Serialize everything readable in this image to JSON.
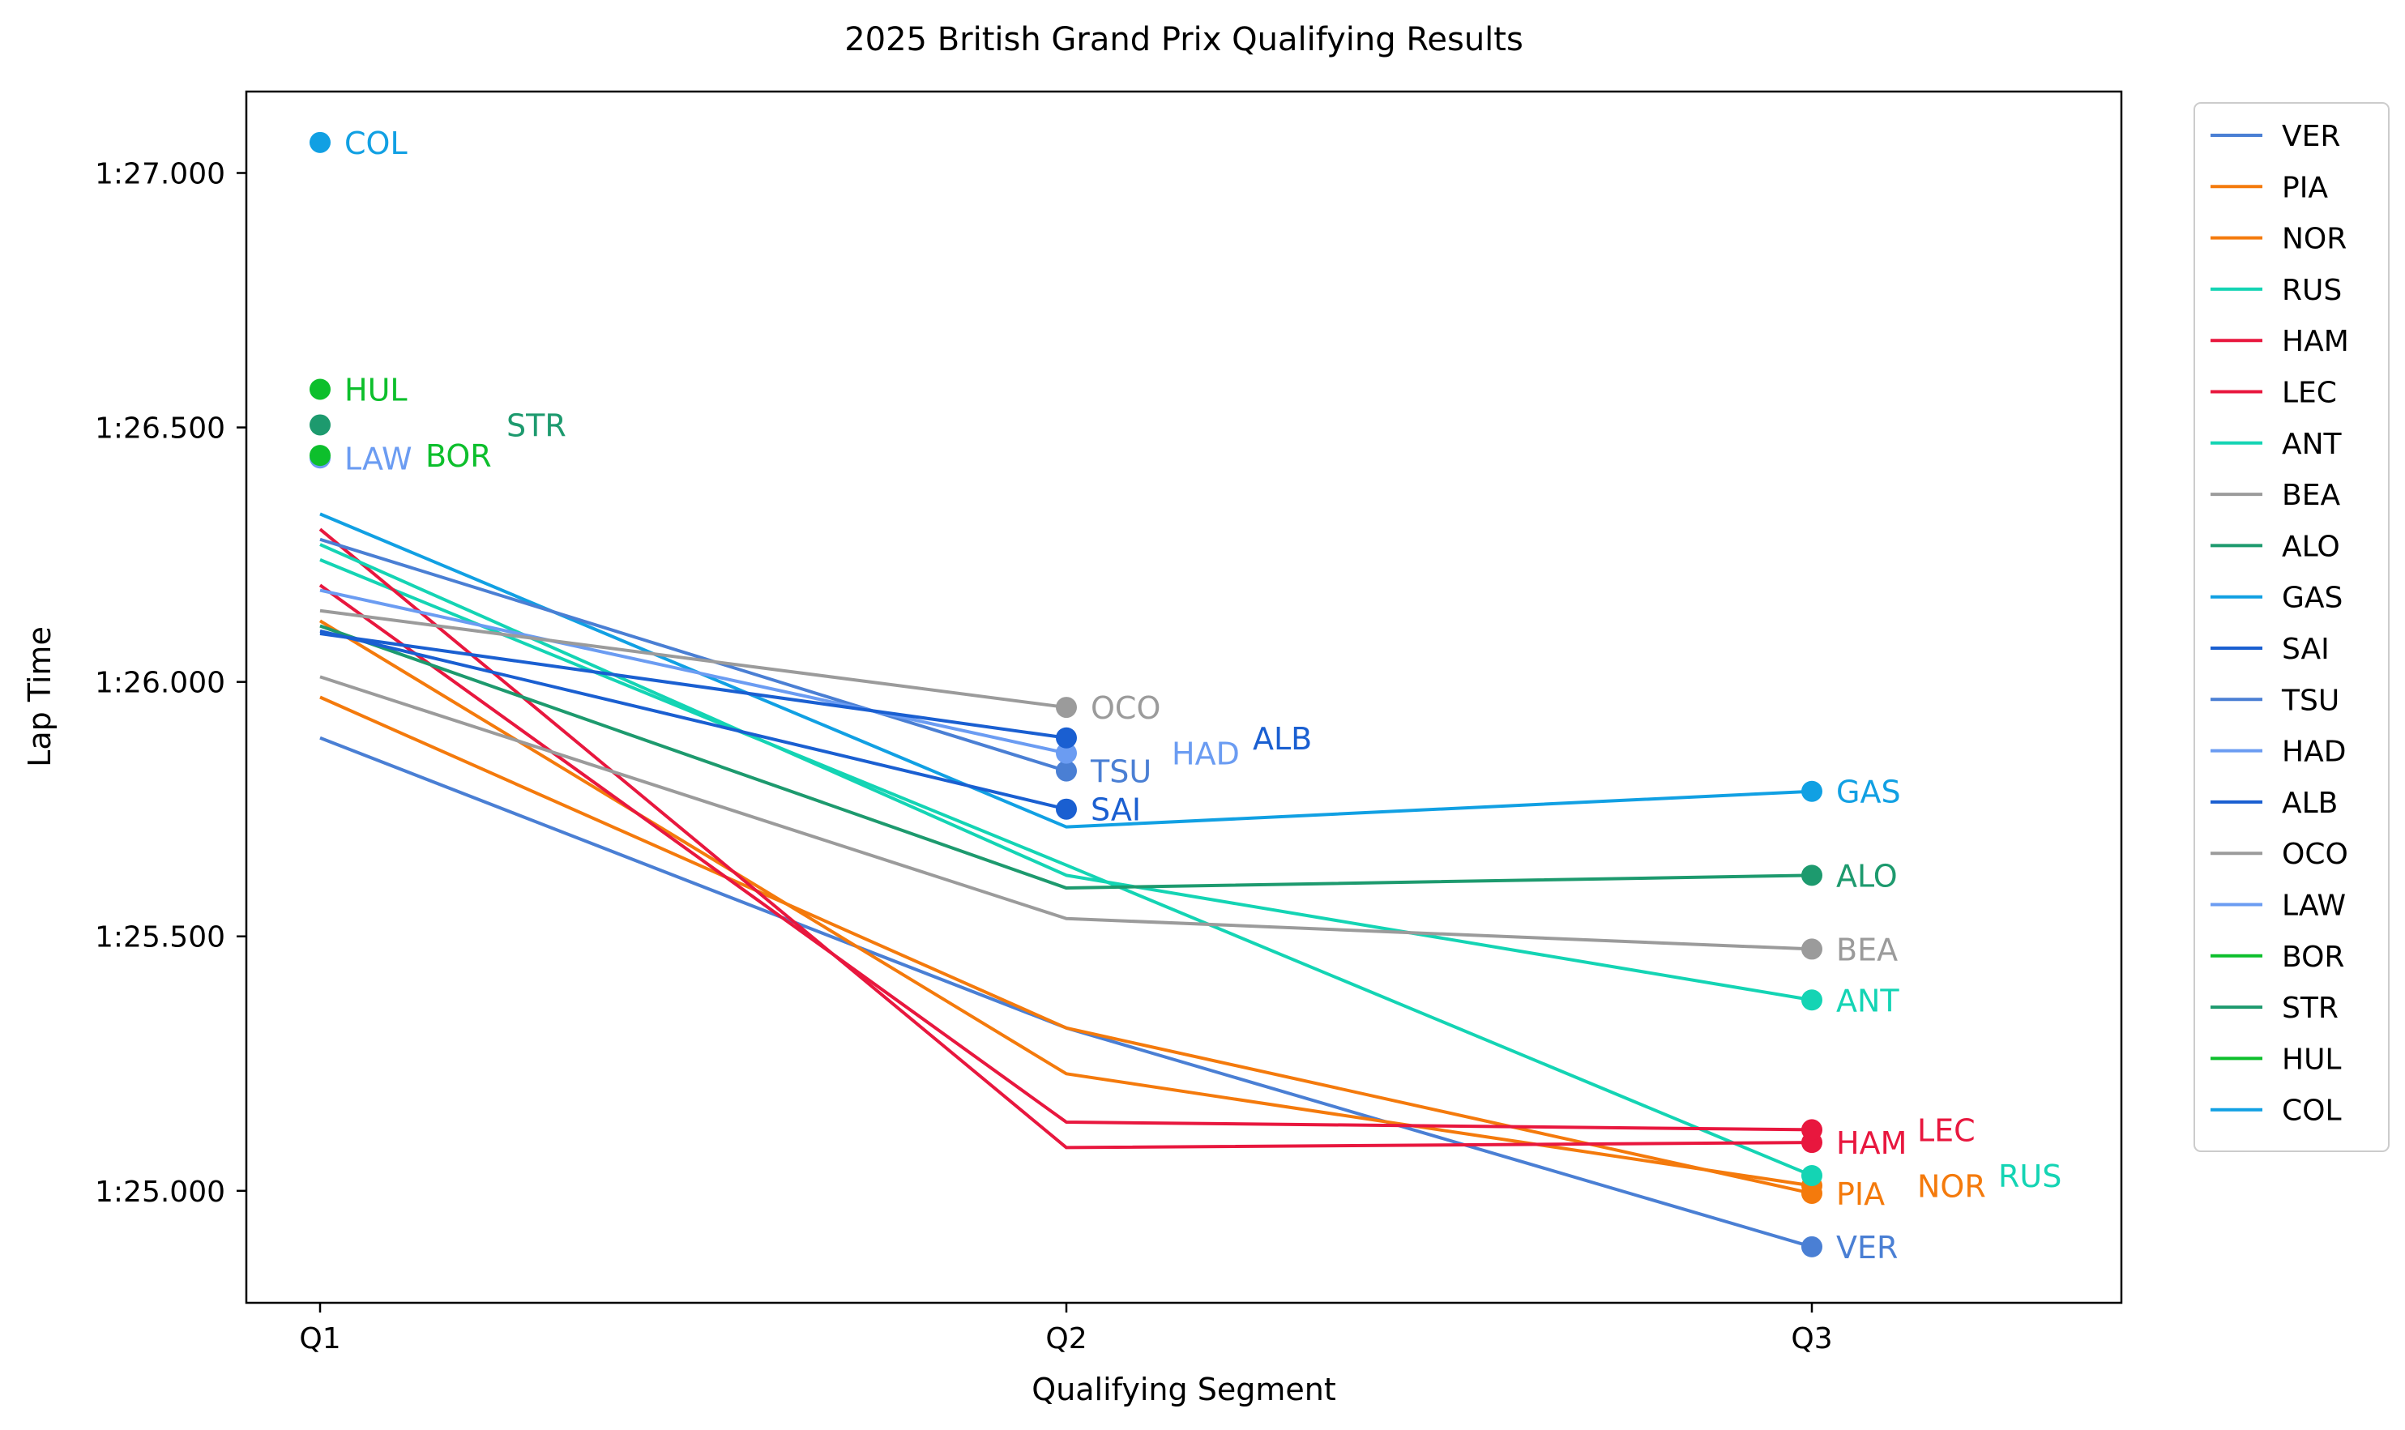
{
  "chart_data": {
    "type": "line",
    "title": "2025 British Grand Prix Qualifying Results",
    "xlabel": "Qualifying Segment",
    "ylabel": "Lap Time",
    "categories": [
      "Q1",
      "Q2",
      "Q3"
    ],
    "ylim": [
      84.78,
      87.16
    ],
    "yticks": [
      85.0,
      85.5,
      86.0,
      86.5,
      87.0
    ],
    "ytick_labels": [
      "1:25.000",
      "1:25.500",
      "1:26.000",
      "1:26.500",
      "1:27.000"
    ],
    "grid": false,
    "legend_position": "outside-right",
    "series": [
      {
        "name": "VER",
        "color": "#4a7fd4",
        "values": [
          85.89,
          85.32,
          84.89
        ]
      },
      {
        "name": "PIA",
        "color": "#f47a0c",
        "values": [
          85.97,
          85.32,
          84.995
        ]
      },
      {
        "name": "NOR",
        "color": "#f47a0c",
        "values": [
          86.12,
          85.23,
          85.01
        ]
      },
      {
        "name": "RUS",
        "color": "#14d4b4",
        "values": [
          86.24,
          85.64,
          85.03
        ]
      },
      {
        "name": "HAM",
        "color": "#e8173e",
        "values": [
          86.3,
          85.085,
          85.095
        ]
      },
      {
        "name": "LEC",
        "color": "#e8173e",
        "values": [
          86.19,
          85.135,
          85.12
        ]
      },
      {
        "name": "ANT",
        "color": "#14d4b4",
        "values": [
          86.27,
          85.62,
          85.375
        ]
      },
      {
        "name": "BEA",
        "color": "#9b9b9b",
        "values": [
          86.01,
          85.535,
          85.475
        ]
      },
      {
        "name": "ALO",
        "color": "#1d9a6e",
        "values": [
          86.11,
          85.595,
          85.62
        ]
      },
      {
        "name": "GAS",
        "color": "#11a0e3",
        "values": [
          86.33,
          85.715,
          85.785
        ]
      },
      {
        "name": "SAI",
        "color": "#1a5fd1",
        "values": [
          86.1,
          85.75,
          null
        ]
      },
      {
        "name": "TSU",
        "color": "#4a7fd4",
        "values": [
          86.28,
          85.825,
          null
        ]
      },
      {
        "name": "HAD",
        "color": "#6b9cf2",
        "values": [
          86.18,
          85.86,
          null
        ]
      },
      {
        "name": "ALB",
        "color": "#1a5fd1",
        "values": [
          86.095,
          85.89,
          null
        ]
      },
      {
        "name": "OCO",
        "color": "#9b9b9b",
        "values": [
          86.14,
          85.95,
          null
        ]
      },
      {
        "name": "LAW",
        "color": "#6b9cf2",
        "values": [
          86.44,
          null,
          null
        ]
      },
      {
        "name": "BOR",
        "color": "#0dbf2c",
        "values": [
          86.445,
          null,
          null
        ]
      },
      {
        "name": "STR",
        "color": "#1d9a6e",
        "values": [
          86.505,
          null,
          null
        ]
      },
      {
        "name": "HUL",
        "color": "#0dbf2c",
        "values": [
          86.575,
          null,
          null
        ]
      },
      {
        "name": "COL",
        "color": "#11a0e3",
        "values": [
          87.06,
          null,
          null
        ]
      }
    ],
    "point_labels": [
      {
        "text": "COL",
        "series": "COL",
        "category": "Q1",
        "value": 87.06
      },
      {
        "text": "HUL",
        "series": "HUL",
        "category": "Q1",
        "value": 86.575
      },
      {
        "text": "STR",
        "series": "STR",
        "category": "Q1",
        "value": 86.505
      },
      {
        "text": "LAW",
        "series": "LAW",
        "category": "Q1",
        "value": 86.44
      },
      {
        "text": "BOR",
        "series": "BOR",
        "category": "Q1",
        "value": 86.445
      },
      {
        "text": "OCO",
        "series": "OCO",
        "category": "Q2",
        "value": 85.95
      },
      {
        "text": "ALB",
        "series": "ALB",
        "category": "Q2",
        "value": 85.89
      },
      {
        "text": "HAD",
        "series": "HAD",
        "category": "Q2",
        "value": 85.86
      },
      {
        "text": "TSU",
        "series": "TSU",
        "category": "Q2",
        "value": 85.825
      },
      {
        "text": "SAI",
        "series": "SAI",
        "category": "Q2",
        "value": 85.75
      },
      {
        "text": "GAS",
        "series": "GAS",
        "category": "Q3",
        "value": 85.785
      },
      {
        "text": "ALO",
        "series": "ALO",
        "category": "Q3",
        "value": 85.62
      },
      {
        "text": "BEA",
        "series": "BEA",
        "category": "Q3",
        "value": 85.475
      },
      {
        "text": "ANT",
        "series": "ANT",
        "category": "Q3",
        "value": 85.375
      },
      {
        "text": "LEC",
        "series": "LEC",
        "category": "Q3",
        "value": 85.12
      },
      {
        "text": "HAM",
        "series": "HAM",
        "category": "Q3",
        "value": 85.095
      },
      {
        "text": "RUS",
        "series": "RUS",
        "category": "Q3",
        "value": 85.03
      },
      {
        "text": "NOR",
        "series": "NOR",
        "category": "Q3",
        "value": 85.01
      },
      {
        "text": "PIA",
        "series": "PIA",
        "category": "Q3",
        "value": 84.995
      },
      {
        "text": "VER",
        "series": "VER",
        "category": "Q3",
        "value": 84.89
      }
    ]
  }
}
